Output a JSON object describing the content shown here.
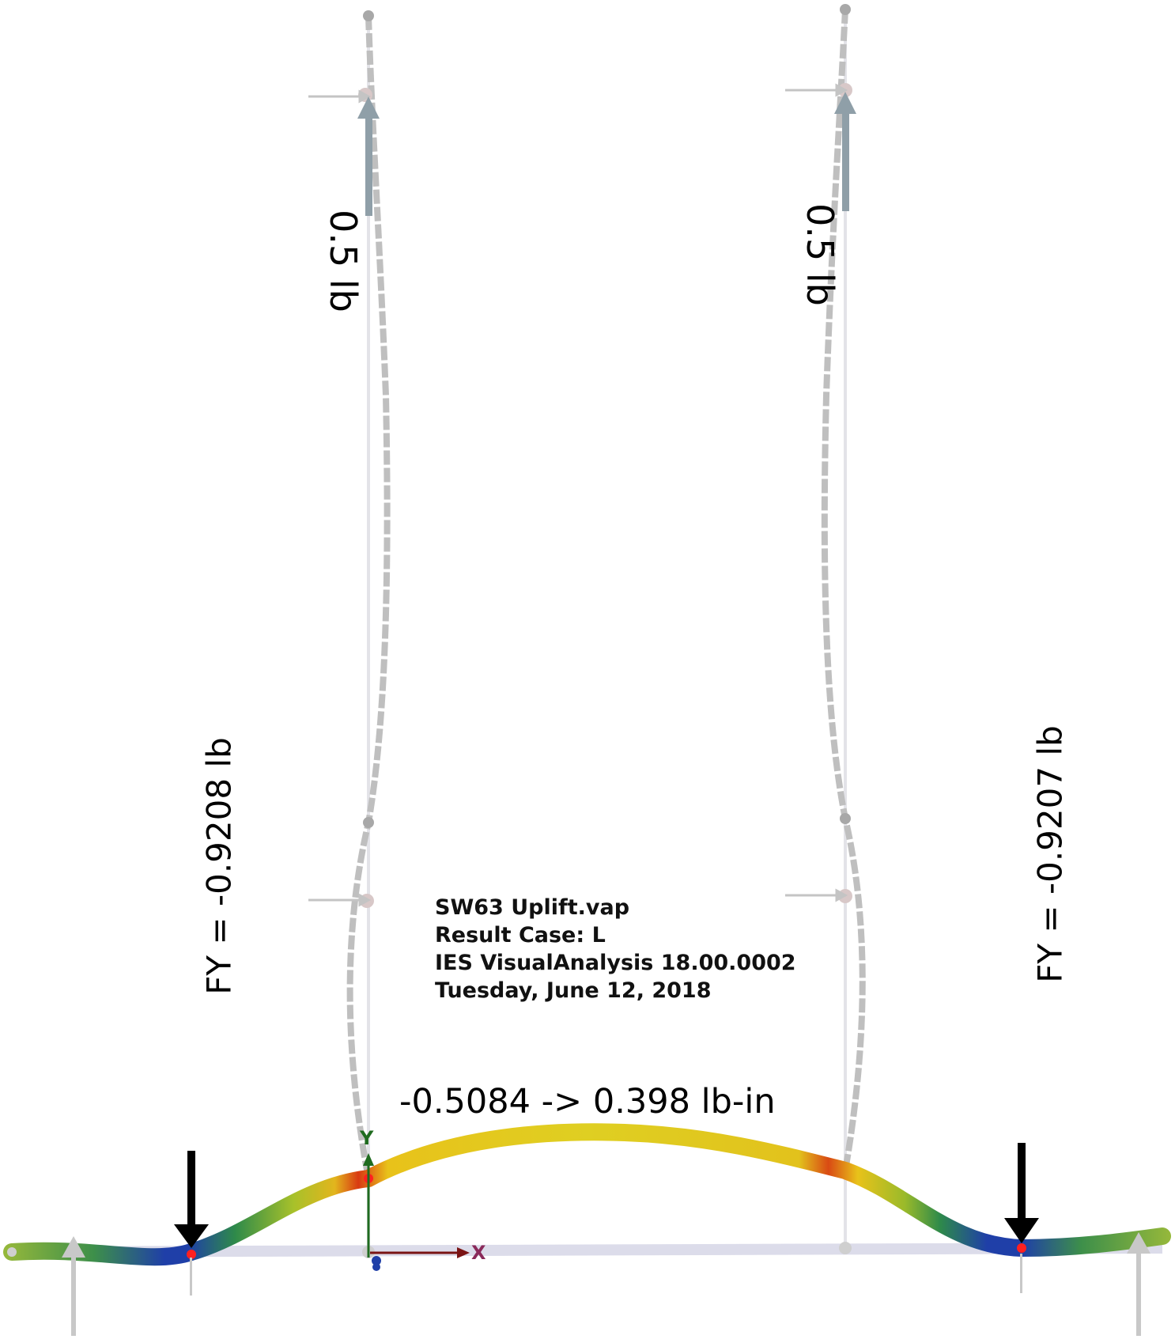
{
  "model": {
    "filename": "SW63 Uplift.vap",
    "result_case": "Result Case: L",
    "software": "IES VisualAnalysis 18.00.0002",
    "date": "Tuesday, June 12, 2018"
  },
  "loads": {
    "left_post_load": "0.5 lb",
    "right_post_load": "0.5 lb"
  },
  "reactions": {
    "left": "FY = -0.9208 lb",
    "right": "FY = -0.9207 lb"
  },
  "moment_range": "-0.5084 -> 0.398 lb-in",
  "axes": {
    "x_label": "X",
    "y_label": "Y"
  },
  "colors": {
    "beam_max": "#d93a12",
    "beam_high": "#e8c21a",
    "beam_mid": "#6fa82a",
    "beam_low": "#1f3fa8",
    "member_gray": "#bdbdbd",
    "load_arrow": "#000000",
    "support_arrow": "#c8c8c8",
    "x_axis": "#7a1414",
    "y_axis": "#1f6b1f"
  }
}
